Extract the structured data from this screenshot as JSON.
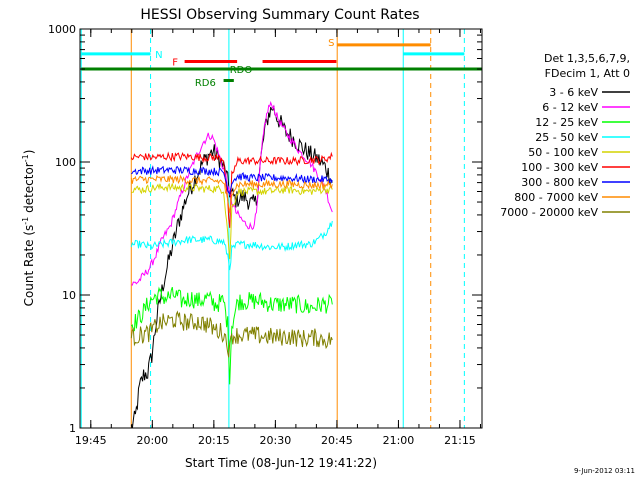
{
  "chart_data": {
    "type": "line",
    "title": "HESSI Observing Summary Count Rates",
    "xlabel": "Start Time (08-Jun-12 19:41:22)",
    "ylabel_main": "Count Rate (s",
    "ylabel_sup": "-1",
    "ylabel_mid": " detector",
    "ylabel_end": ")",
    "x_unit": "minutes after 19:41:22",
    "xlim": [
      0,
      98
    ],
    "ylim": [
      1,
      1000
    ],
    "y_scale": "log",
    "x_ticks": [
      {
        "value": 2.63,
        "label": "19:45"
      },
      {
        "value": 17.63,
        "label": "20:00"
      },
      {
        "value": 32.63,
        "label": "20:15"
      },
      {
        "value": 47.63,
        "label": "20:30"
      },
      {
        "value": 62.63,
        "label": "20:45"
      },
      {
        "value": 77.63,
        "label": "21:00"
      },
      {
        "value": 92.63,
        "label": "21:15"
      }
    ],
    "y_ticks": [
      {
        "value": 1,
        "label": "1"
      },
      {
        "value": 10,
        "label": "10"
      },
      {
        "value": 100,
        "label": "100"
      },
      {
        "value": 1000,
        "label": "1000"
      }
    ],
    "legend": {
      "position": "right",
      "header_line1": "Det 1,3,5,6,7,9,",
      "header_line2": "FDecim 1, Att 0",
      "entries": [
        {
          "label": "3 - 6 keV",
          "color": "#000000"
        },
        {
          "label": "6 - 12 keV",
          "color": "#ff00ff"
        },
        {
          "label": "12 - 25 keV",
          "color": "#00ff00"
        },
        {
          "label": "25 - 50 keV",
          "color": "#00ffff"
        },
        {
          "label": "50 - 100 keV",
          "color": "#d4d400"
        },
        {
          "label": "100 - 300 keV",
          "color": "#ff0000"
        },
        {
          "label": "300 - 800 keV",
          "color": "#0000ff"
        },
        {
          "label": "800 - 7000 keV",
          "color": "#ff8c00"
        },
        {
          "label": "7000 - 20000 keV",
          "color": "#808000"
        }
      ]
    },
    "series": [
      {
        "name": "3 - 6 keV",
        "color": "#000000",
        "points": [
          [
            12.5,
            1
          ],
          [
            13.5,
            1.2
          ],
          [
            14.5,
            2
          ],
          [
            15.5,
            2.5
          ],
          [
            16.5,
            2.6
          ],
          [
            17.5,
            3.5
          ],
          [
            18.5,
            6
          ],
          [
            19.5,
            9
          ],
          [
            20.5,
            13
          ],
          [
            22,
            20
          ],
          [
            24,
            35
          ],
          [
            26,
            55
          ],
          [
            28,
            75
          ],
          [
            30,
            100
          ],
          [
            31.5,
            115
          ],
          [
            32.5,
            120
          ],
          [
            34,
            105
          ],
          [
            35.5,
            85
          ],
          [
            36.5,
            60
          ],
          [
            38,
            52
          ],
          [
            40,
            55
          ],
          [
            42,
            48
          ],
          [
            43,
            50
          ],
          [
            44,
            100
          ],
          [
            45,
            170
          ],
          [
            46,
            230
          ],
          [
            47,
            260
          ],
          [
            48,
            220
          ],
          [
            50,
            170
          ],
          [
            52,
            150
          ],
          [
            54,
            130
          ],
          [
            56,
            115
          ],
          [
            58,
            105
          ],
          [
            60,
            90
          ],
          [
            61.5,
            70
          ]
        ]
      },
      {
        "name": "6 - 12 keV",
        "color": "#ff00ff",
        "points": [
          [
            12.5,
            12
          ],
          [
            14,
            12.5
          ],
          [
            15.5,
            14
          ],
          [
            17,
            16
          ],
          [
            18.5,
            20
          ],
          [
            20,
            26
          ],
          [
            22,
            33
          ],
          [
            24,
            50
          ],
          [
            26,
            75
          ],
          [
            28,
            105
          ],
          [
            30,
            140
          ],
          [
            31.5,
            160
          ],
          [
            32.5,
            150
          ],
          [
            34,
            110
          ],
          [
            35.5,
            80
          ],
          [
            36.5,
            55
          ],
          [
            38,
            42
          ],
          [
            40,
            35
          ],
          [
            42,
            32
          ],
          [
            43,
            40
          ],
          [
            44,
            100
          ],
          [
            45,
            190
          ],
          [
            46,
            260
          ],
          [
            47,
            270
          ],
          [
            48,
            220
          ],
          [
            50,
            170
          ],
          [
            52,
            140
          ],
          [
            54,
            115
          ],
          [
            56,
            100
          ],
          [
            58,
            80
          ],
          [
            60,
            60
          ],
          [
            61.5,
            42
          ]
        ]
      },
      {
        "name": "12 - 25 keV",
        "color": "#00ff00",
        "points": [
          [
            12.5,
            6
          ],
          [
            14,
            6.5
          ],
          [
            15.5,
            7.5
          ],
          [
            17,
            9
          ],
          [
            19,
            10
          ],
          [
            21,
            9.5
          ],
          [
            23,
            10
          ],
          [
            25,
            9
          ],
          [
            27,
            9.5
          ],
          [
            29,
            9
          ],
          [
            31,
            9.5
          ],
          [
            33,
            8.5
          ],
          [
            35,
            9
          ],
          [
            36,
            6
          ],
          [
            36.5,
            2.5
          ],
          [
            37,
            6
          ],
          [
            38.5,
            9
          ],
          [
            41,
            9
          ],
          [
            44,
            9
          ],
          [
            47,
            8.5
          ],
          [
            50,
            8.5
          ],
          [
            53,
            8.5
          ],
          [
            56,
            8
          ],
          [
            59,
            8.5
          ],
          [
            61.5,
            8.5
          ]
        ]
      },
      {
        "name": "25 - 50 keV",
        "color": "#00ffff",
        "points": [
          [
            12.5,
            24
          ],
          [
            15,
            24
          ],
          [
            17,
            23
          ],
          [
            20,
            24
          ],
          [
            23,
            25
          ],
          [
            26,
            26
          ],
          [
            29,
            26
          ],
          [
            32,
            26
          ],
          [
            35,
            25
          ],
          [
            36,
            20
          ],
          [
            36.5,
            16
          ],
          [
            37,
            22
          ],
          [
            38.5,
            24
          ],
          [
            42,
            24
          ],
          [
            46,
            23
          ],
          [
            50,
            23
          ],
          [
            53,
            24
          ],
          [
            56,
            24
          ],
          [
            58,
            26
          ],
          [
            60,
            30
          ],
          [
            61.5,
            36
          ]
        ]
      },
      {
        "name": "50 - 100 keV",
        "color": "#d4d400",
        "points": [
          [
            12.5,
            63
          ],
          [
            15,
            62
          ],
          [
            18,
            64
          ],
          [
            21,
            65
          ],
          [
            24,
            64
          ],
          [
            27,
            64
          ],
          [
            30,
            63
          ],
          [
            33,
            63
          ],
          [
            35,
            62
          ],
          [
            36,
            30
          ],
          [
            36.5,
            18
          ],
          [
            37,
            45
          ],
          [
            38.5,
            60
          ],
          [
            42,
            60
          ],
          [
            46,
            60
          ],
          [
            50,
            62
          ],
          [
            53,
            61
          ],
          [
            56,
            60
          ],
          [
            59,
            62
          ],
          [
            61.5,
            62
          ]
        ]
      },
      {
        "name": "100 - 300 keV",
        "color": "#ff0000",
        "points": [
          [
            12.5,
            108
          ],
          [
            15,
            110
          ],
          [
            18,
            108
          ],
          [
            21,
            110
          ],
          [
            24,
            110
          ],
          [
            27,
            110
          ],
          [
            30,
            108
          ],
          [
            33,
            108
          ],
          [
            35,
            106
          ],
          [
            36,
            50
          ],
          [
            36.5,
            30
          ],
          [
            37,
            80
          ],
          [
            38.5,
            102
          ],
          [
            42,
            102
          ],
          [
            46,
            102
          ],
          [
            50,
            102
          ],
          [
            53,
            102
          ],
          [
            56,
            104
          ],
          [
            59,
            104
          ],
          [
            61.5,
            110
          ]
        ]
      },
      {
        "name": "300 - 800 keV",
        "color": "#0000ff",
        "points": [
          [
            12.5,
            85
          ],
          [
            15,
            86
          ],
          [
            18,
            86
          ],
          [
            21,
            87
          ],
          [
            24,
            87
          ],
          [
            27,
            86
          ],
          [
            30,
            86
          ],
          [
            33,
            85
          ],
          [
            35,
            84
          ],
          [
            36,
            65
          ],
          [
            36.5,
            58
          ],
          [
            37,
            72
          ],
          [
            38.5,
            78
          ],
          [
            42,
            76
          ],
          [
            46,
            76
          ],
          [
            50,
            76
          ],
          [
            53,
            75
          ],
          [
            56,
            74
          ],
          [
            59,
            74
          ],
          [
            61.5,
            73
          ]
        ]
      },
      {
        "name": "800 - 7000 keV",
        "color": "#ff8c00",
        "points": [
          [
            12.5,
            73
          ],
          [
            15,
            74
          ],
          [
            18,
            74
          ],
          [
            21,
            74
          ],
          [
            24,
            74
          ],
          [
            27,
            73
          ],
          [
            30,
            72
          ],
          [
            33,
            72
          ],
          [
            35,
            71
          ],
          [
            36,
            50
          ],
          [
            36.5,
            40
          ],
          [
            37,
            60
          ],
          [
            38.5,
            68
          ],
          [
            42,
            68
          ],
          [
            46,
            68
          ],
          [
            50,
            68
          ],
          [
            53,
            68
          ],
          [
            56,
            67
          ],
          [
            59,
            67
          ],
          [
            61.5,
            68
          ]
        ]
      },
      {
        "name": "7000 - 20000 keV",
        "color": "#808000",
        "points": [
          [
            12.5,
            4.8
          ],
          [
            15,
            5
          ],
          [
            17,
            5.2
          ],
          [
            19,
            6
          ],
          [
            21,
            6.3
          ],
          [
            23,
            6.5
          ],
          [
            25,
            6.3
          ],
          [
            27,
            6.2
          ],
          [
            29,
            6.3
          ],
          [
            31,
            6
          ],
          [
            33,
            5.5
          ],
          [
            35,
            5.2
          ],
          [
            36,
            4.2
          ],
          [
            36.5,
            3.8
          ],
          [
            37,
            5
          ],
          [
            39,
            5
          ],
          [
            42,
            5
          ],
          [
            45,
            4.9
          ],
          [
            48,
            4.8
          ],
          [
            51,
            4.9
          ],
          [
            54,
            4.7
          ],
          [
            57,
            4.8
          ],
          [
            60,
            4.6
          ],
          [
            61.5,
            4.6
          ]
        ]
      }
    ],
    "vertical_lines": [
      {
        "x": 0.3,
        "color": "#00ffff",
        "style": "solid"
      },
      {
        "x": 12.5,
        "color": "#ff8c00",
        "style": "solid"
      },
      {
        "x": 17.2,
        "color": "#00ffff",
        "style": "dashed"
      },
      {
        "x": 36.3,
        "color": "#00ffff",
        "style": "solid"
      },
      {
        "x": 62.7,
        "color": "#ff8c00",
        "style": "solid"
      },
      {
        "x": 78.8,
        "color": "#00ffff",
        "style": "solid"
      },
      {
        "x": 85.5,
        "color": "#ff8c00",
        "style": "dashed"
      },
      {
        "x": 93.7,
        "color": "#00ffff",
        "style": "dashed"
      }
    ],
    "flag_bars": [
      {
        "name": "N",
        "color": "#00ffff",
        "y": 650,
        "segments": [
          [
            0.3,
            17.2
          ]
        ],
        "label": "N",
        "label_x": 18.3,
        "label_y": 650
      },
      {
        "name": "N",
        "color": "#00ffff",
        "y": 650,
        "segments": [
          [
            78.8,
            93.7
          ]
        ],
        "label": "",
        "label_x": 0,
        "label_y": 0
      },
      {
        "name": "F",
        "color": "#ff0000",
        "y": 570,
        "segments": [
          [
            25.5,
            38.3
          ],
          [
            44.5,
            62.5
          ]
        ],
        "label": "F",
        "label_x": 22.5,
        "label_y": 570
      },
      {
        "name": "S",
        "color": "#ff8c00",
        "y": 760,
        "segments": [
          [
            62.7,
            85.5
          ]
        ],
        "label": "S",
        "label_x": 60.5,
        "label_y": 800
      },
      {
        "name": "RDO",
        "color": "#008000",
        "y": 500,
        "segments": [
          [
            0.3,
            98
          ]
        ],
        "label": "RDO",
        "label_x": 36.5,
        "label_y": 500
      },
      {
        "name": "RD6",
        "color": "#008000",
        "y": 410,
        "segments": [
          [
            35,
            37.5
          ]
        ],
        "label": "RD6",
        "label_x": 28,
        "label_y": 400
      }
    ],
    "timestamp": "9-Jun-2012 03:11",
    "grid": false
  }
}
